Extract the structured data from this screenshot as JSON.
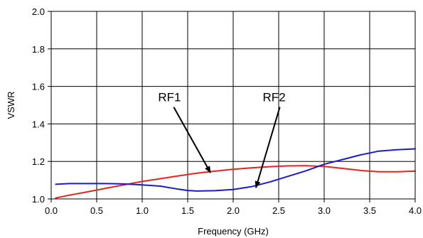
{
  "chart_data": {
    "type": "line",
    "title": "",
    "xlabel": "Frequency (GHz)",
    "ylabel": "VSWR",
    "xlim": [
      0.0,
      4.0
    ],
    "ylim": [
      1.0,
      2.0
    ],
    "xticks": [
      "0.0",
      "0.5",
      "1.0",
      "1.5",
      "2.0",
      "2.5",
      "3.0",
      "3.5",
      "4.0"
    ],
    "yticks": [
      "1.0",
      "1.2",
      "1.4",
      "1.6",
      "1.8",
      "2.0"
    ],
    "grid": true,
    "series": [
      {
        "name": "RF1",
        "color": "#e8231f",
        "x": [
          0.05,
          0.2,
          0.4,
          0.6,
          0.8,
          1.0,
          1.2,
          1.4,
          1.6,
          1.8,
          2.0,
          2.2,
          2.4,
          2.6,
          2.8,
          3.0,
          3.2,
          3.4,
          3.6,
          3.8,
          4.0
        ],
        "y": [
          1.005,
          1.02,
          1.038,
          1.057,
          1.075,
          1.093,
          1.108,
          1.123,
          1.137,
          1.148,
          1.158,
          1.166,
          1.172,
          1.176,
          1.177,
          1.173,
          1.163,
          1.152,
          1.145,
          1.145,
          1.148
        ]
      },
      {
        "name": "RF2",
        "color": "#1a1ad0",
        "x": [
          0.05,
          0.2,
          0.4,
          0.6,
          0.8,
          1.0,
          1.2,
          1.4,
          1.5,
          1.6,
          1.8,
          2.0,
          2.2,
          2.4,
          2.6,
          2.8,
          3.0,
          3.2,
          3.4,
          3.6,
          3.8,
          4.0
        ],
        "y": [
          1.078,
          1.082,
          1.082,
          1.082,
          1.08,
          1.075,
          1.068,
          1.052,
          1.045,
          1.042,
          1.044,
          1.05,
          1.065,
          1.09,
          1.12,
          1.15,
          1.185,
          1.21,
          1.235,
          1.255,
          1.262,
          1.267
        ]
      }
    ],
    "annotations": [
      {
        "text": "RF1",
        "x": 1.3,
        "y": 1.52,
        "points_to": [
          1.75,
          1.14
        ]
      },
      {
        "text": "RF2",
        "x": 2.45,
        "y": 1.52,
        "points_to": [
          2.25,
          1.06
        ]
      }
    ]
  }
}
